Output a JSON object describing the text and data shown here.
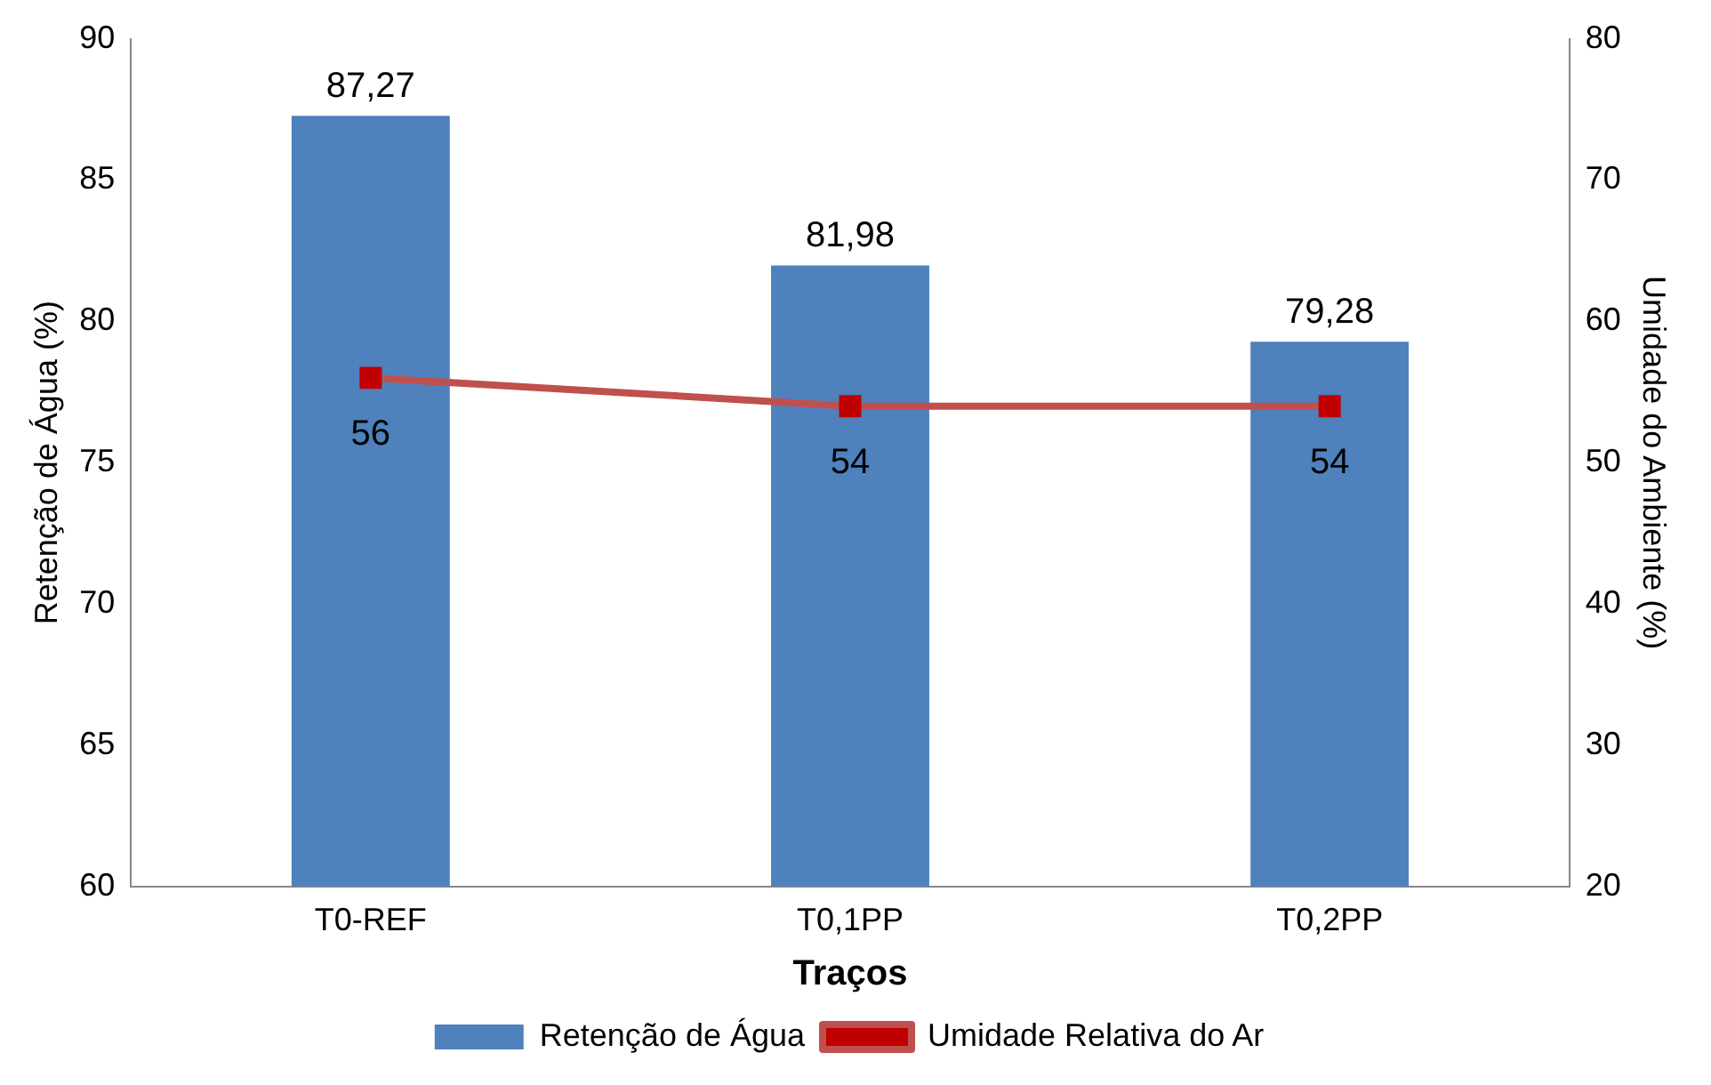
{
  "chart_data": {
    "type": "bar",
    "xlabel": "Traços",
    "ylabel": "Retenção de Água (%)",
    "y2label": "Umidade do Ambiente (%)",
    "categories": [
      "T0-REF",
      "T0,1PP",
      "T0,2PP"
    ],
    "series": [
      {
        "name": "Retenção de Água",
        "color": "#4f81bd",
        "values": [
          87.27,
          81.98,
          79.28
        ],
        "value_labels": [
          "87,27",
          "81,98",
          "79,28"
        ]
      },
      {
        "name": "Umidade Relativa do Ar",
        "type": "line",
        "axis": "y2",
        "color": "#c0504d",
        "marker": "square",
        "values": [
          56,
          54,
          54
        ],
        "value_labels": [
          "56",
          "54",
          "54"
        ]
      }
    ],
    "ylim": [
      60,
      90
    ],
    "yticks": [
      60,
      65,
      70,
      75,
      80,
      85,
      90
    ],
    "y2lim": [
      20,
      80
    ],
    "y2ticks": [
      20,
      30,
      40,
      50,
      60,
      70,
      80
    ],
    "grid": false,
    "legend": "bottom"
  }
}
